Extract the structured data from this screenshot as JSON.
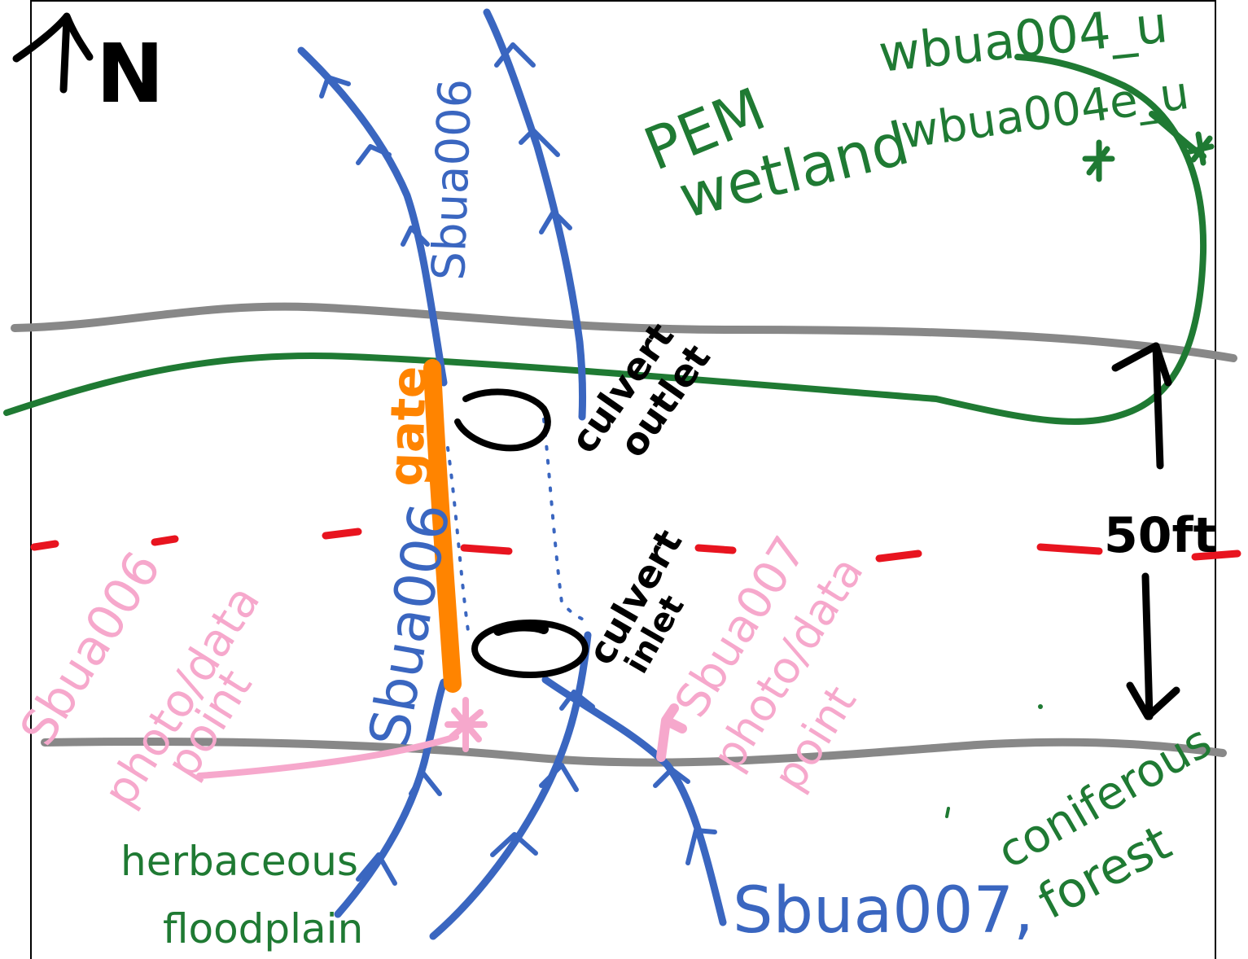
{
  "north": {
    "label": "N"
  },
  "scale": {
    "label": "50ft"
  },
  "streams": {
    "sbua006_north": "Sbua006",
    "sbua006_south": "Sbua006",
    "sbua007": "Sbua007,"
  },
  "wetlands": {
    "wbua004_u": "wbua004_u",
    "wbua004e_u": "wbua004e_u",
    "pem_line1": "PEM",
    "pem_line2": "wetland"
  },
  "features": {
    "gate": "gate",
    "culvert_outlet_line1": "culvert",
    "culvert_outlet_line2": "outlet",
    "culvert_inlet_line1": "culvert",
    "culvert_inlet_line2": "inlet"
  },
  "photo_points": {
    "sbua006_line1": "Sbua006",
    "sbua006_line2": "photo/data",
    "sbua006_line3": "point",
    "sbua007_line1": "Sbua007",
    "sbua007_line2": "photo/data",
    "sbua007_line3": "point"
  },
  "land_cover": {
    "herbaceous_line1": "herbaceous",
    "herbaceous_line2": "floodplain",
    "coniferous_line1": "coniferous",
    "coniferous_line2": "forest"
  },
  "colors": {
    "stream": "#3a66c0",
    "wetland": "#1f7a33",
    "road": "#888888",
    "gate": "#ff8400",
    "boundary": "#e8141f",
    "photo_point": "#f6a8cc",
    "annotation": "#000000"
  }
}
